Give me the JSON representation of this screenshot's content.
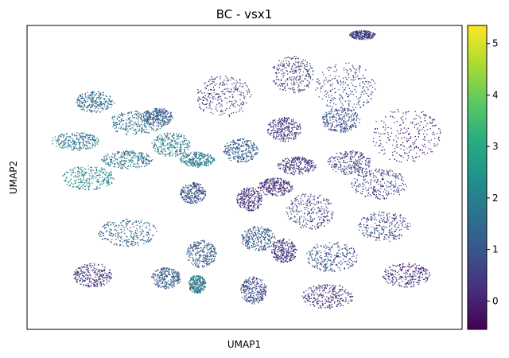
{
  "chart_data": {
    "type": "scatter",
    "title": "BC - vsx1",
    "xlabel": "UMAP1",
    "ylabel": "UMAP2",
    "grid": false,
    "legend": "none",
    "colorbar": {
      "colormap": "viridis",
      "range": [
        -0.55,
        5.35
      ],
      "ticks": [
        0,
        1,
        2,
        3,
        4,
        5
      ],
      "tick_labels": [
        "0",
        "1",
        "2",
        "3",
        "4",
        "5"
      ]
    },
    "clusters_note": "",
    "clusters": [
      {
        "x": 0.155,
        "y": 0.75,
        "rx": 0.045,
        "ry": 0.035,
        "v": 1.5
      },
      {
        "x": 0.25,
        "y": 0.68,
        "rx": 0.065,
        "ry": 0.04,
        "v": 1.6
      },
      {
        "x": 0.11,
        "y": 0.62,
        "rx": 0.055,
        "ry": 0.03,
        "v": 1.8
      },
      {
        "x": 0.14,
        "y": 0.5,
        "rx": 0.06,
        "ry": 0.04,
        "v": 2.1
      },
      {
        "x": 0.23,
        "y": 0.56,
        "rx": 0.06,
        "ry": 0.03,
        "v": 1.7
      },
      {
        "x": 0.33,
        "y": 0.61,
        "rx": 0.045,
        "ry": 0.04,
        "v": 1.9
      },
      {
        "x": 0.3,
        "y": 0.7,
        "rx": 0.035,
        "ry": 0.03,
        "v": 1.2
      },
      {
        "x": 0.39,
        "y": 0.56,
        "rx": 0.04,
        "ry": 0.025,
        "v": 1.9
      },
      {
        "x": 0.38,
        "y": 0.45,
        "rx": 0.03,
        "ry": 0.035,
        "v": 1.0
      },
      {
        "x": 0.23,
        "y": 0.32,
        "rx": 0.07,
        "ry": 0.045,
        "v": 1.3
      },
      {
        "x": 0.15,
        "y": 0.18,
        "rx": 0.045,
        "ry": 0.04,
        "v": 0.3
      },
      {
        "x": 0.32,
        "y": 0.17,
        "rx": 0.035,
        "ry": 0.035,
        "v": 1.1
      },
      {
        "x": 0.39,
        "y": 0.15,
        "rx": 0.02,
        "ry": 0.03,
        "v": 1.8
      },
      {
        "x": 0.4,
        "y": 0.25,
        "rx": 0.035,
        "ry": 0.045,
        "v": 1.1
      },
      {
        "x": 0.45,
        "y": 0.77,
        "rx": 0.065,
        "ry": 0.07,
        "v": 0.3
      },
      {
        "x": 0.49,
        "y": 0.59,
        "rx": 0.04,
        "ry": 0.04,
        "v": 1.1
      },
      {
        "x": 0.51,
        "y": 0.43,
        "rx": 0.03,
        "ry": 0.04,
        "v": 0.4
      },
      {
        "x": 0.59,
        "y": 0.66,
        "rx": 0.04,
        "ry": 0.04,
        "v": 0.3
      },
      {
        "x": 0.61,
        "y": 0.84,
        "rx": 0.05,
        "ry": 0.06,
        "v": 0.5
      },
      {
        "x": 0.73,
        "y": 0.8,
        "rx": 0.07,
        "ry": 0.08,
        "v": 0.8
      },
      {
        "x": 0.87,
        "y": 0.64,
        "rx": 0.08,
        "ry": 0.09,
        "v": 0.2
      },
      {
        "x": 0.65,
        "y": 0.39,
        "rx": 0.055,
        "ry": 0.06,
        "v": 0.6
      },
      {
        "x": 0.81,
        "y": 0.48,
        "rx": 0.065,
        "ry": 0.05,
        "v": 0.5
      },
      {
        "x": 0.82,
        "y": 0.34,
        "rx": 0.06,
        "ry": 0.05,
        "v": 0.7
      },
      {
        "x": 0.7,
        "y": 0.24,
        "rx": 0.06,
        "ry": 0.05,
        "v": 0.9
      },
      {
        "x": 0.69,
        "y": 0.11,
        "rx": 0.06,
        "ry": 0.04,
        "v": 0.2
      },
      {
        "x": 0.87,
        "y": 0.18,
        "rx": 0.055,
        "ry": 0.04,
        "v": 0.3
      },
      {
        "x": 0.53,
        "y": 0.3,
        "rx": 0.04,
        "ry": 0.04,
        "v": 1.0
      },
      {
        "x": 0.52,
        "y": 0.13,
        "rx": 0.03,
        "ry": 0.045,
        "v": 0.8
      },
      {
        "x": 0.59,
        "y": 0.26,
        "rx": 0.03,
        "ry": 0.04,
        "v": 0.4
      },
      {
        "x": 0.77,
        "y": 0.97,
        "rx": 0.03,
        "ry": 0.015,
        "v": 0.6
      },
      {
        "x": 0.72,
        "y": 0.69,
        "rx": 0.045,
        "ry": 0.04,
        "v": 0.7
      },
      {
        "x": 0.62,
        "y": 0.54,
        "rx": 0.045,
        "ry": 0.03,
        "v": 0.4
      },
      {
        "x": 0.57,
        "y": 0.47,
        "rx": 0.04,
        "ry": 0.03,
        "v": 0.2
      },
      {
        "x": 0.74,
        "y": 0.55,
        "rx": 0.05,
        "ry": 0.04,
        "v": 0.5
      }
    ]
  }
}
